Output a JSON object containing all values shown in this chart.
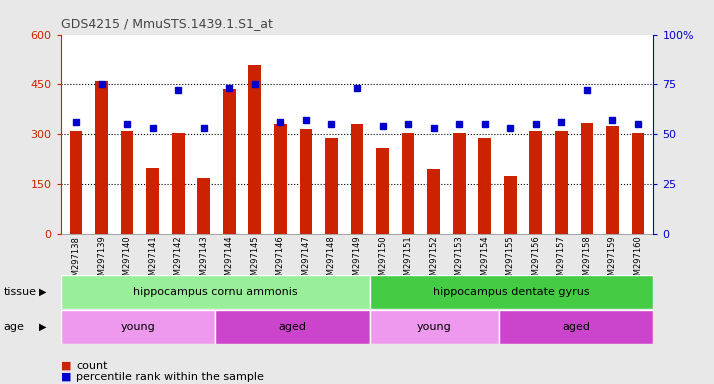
{
  "title": "GDS4215 / MmuSTS.1439.1.S1_at",
  "samples": [
    "GSM297138",
    "GSM297139",
    "GSM297140",
    "GSM297141",
    "GSM297142",
    "GSM297143",
    "GSM297144",
    "GSM297145",
    "GSM297146",
    "GSM297147",
    "GSM297148",
    "GSM297149",
    "GSM297150",
    "GSM297151",
    "GSM297152",
    "GSM297153",
    "GSM297154",
    "GSM297155",
    "GSM297156",
    "GSM297157",
    "GSM297158",
    "GSM297159",
    "GSM297160"
  ],
  "counts": [
    310,
    460,
    310,
    200,
    305,
    170,
    435,
    510,
    330,
    315,
    290,
    330,
    260,
    305,
    195,
    305,
    290,
    175,
    310,
    310,
    335,
    325,
    305
  ],
  "percentiles": [
    56,
    75,
    55,
    53,
    72,
    53,
    73,
    75,
    56,
    57,
    55,
    73,
    54,
    55,
    53,
    55,
    55,
    53,
    55,
    56,
    72,
    57,
    55
  ],
  "bar_color": "#cc2200",
  "dot_color": "#0000cc",
  "ylim_left": [
    0,
    600
  ],
  "ylim_right": [
    0,
    100
  ],
  "yticks_left": [
    0,
    150,
    300,
    450,
    600
  ],
  "yticks_right": [
    0,
    25,
    50,
    75,
    100
  ],
  "tissue_groups": [
    {
      "label": "hippocampus cornu ammonis",
      "start": 0,
      "end": 12,
      "color": "#99ee99"
    },
    {
      "label": "hippocampus dentate gyrus",
      "start": 12,
      "end": 23,
      "color": "#44cc44"
    }
  ],
  "age_groups": [
    {
      "label": "young",
      "start": 0,
      "end": 6,
      "color": "#ee99ee"
    },
    {
      "label": "aged",
      "start": 6,
      "end": 12,
      "color": "#cc44cc"
    },
    {
      "label": "young",
      "start": 12,
      "end": 17,
      "color": "#ee99ee"
    },
    {
      "label": "aged",
      "start": 17,
      "end": 23,
      "color": "#cc44cc"
    }
  ],
  "tissue_label": "tissue",
  "age_label": "age",
  "legend_count": "count",
  "legend_percentile": "percentile rank within the sample",
  "bg_color": "#e8e8e8",
  "plot_bg": "#ffffff",
  "title_color": "#444444",
  "left_axis_color": "#cc2200",
  "right_axis_color": "#0000cc",
  "ytick_right_labels": [
    "0",
    "25",
    "50",
    "75",
    "100%"
  ]
}
